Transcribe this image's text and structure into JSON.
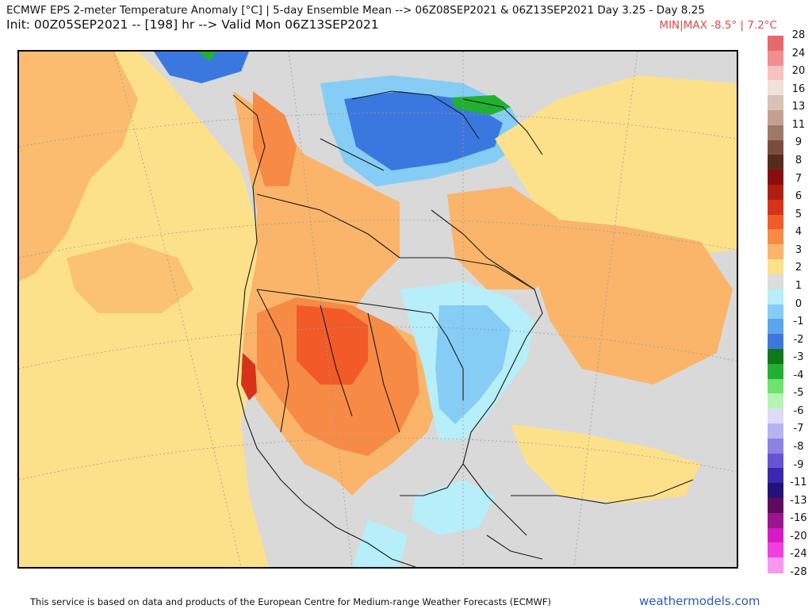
{
  "header": {
    "title_line1": "ECMWF EPS 2-meter Temperature Anomaly [°C] | 5-day Ensemble Mean --> 06Z08SEP2021 & 06Z13SEP2021   Day 3.25 - Day 8.25",
    "title_line2": "Init: 00Z05SEP2021 -- [198] hr --> Valid Mon 06Z13SEP2021",
    "minmax": "MIN|MAX -8.5° | 7.2°C"
  },
  "legend": {
    "labels": [
      "28",
      "24",
      "20",
      "16",
      "13",
      "11",
      "9",
      "8",
      "7",
      "6",
      "5",
      "4",
      "3",
      "2",
      "1",
      "0",
      "-1",
      "-2",
      "-3",
      "-4",
      "-5",
      "-6",
      "-7",
      "-8",
      "-9",
      "-11",
      "-13",
      "-16",
      "-20",
      "-24",
      "-28"
    ],
    "colors": [
      "#e8686c",
      "#f08e90",
      "#f7c2c0",
      "#f2e0da",
      "#d9c2b8",
      "#c4a090",
      "#a07866",
      "#7a4e3c",
      "#5a2a1c",
      "#8a0d0d",
      "#b01e12",
      "#d6331a",
      "#f25a28",
      "#f78a45",
      "#fab56a",
      "#fde18a",
      "#fcf6b8",
      "#dcdcdc",
      "#b6eefa",
      "#86cdf5",
      "#5aa6ee",
      "#3a78e0",
      "#1a4cc8",
      "#0c7a18",
      "#22b032",
      "#6ee36e",
      "#b4f5b4",
      "#dedaf8",
      "#b8b2f0",
      "#8c82e6",
      "#6654d6",
      "#3a28b0",
      "#24127a",
      "#5e0a5e",
      "#9c1490",
      "#d81ac4",
      "#f240e0",
      "#f896f0"
    ],
    "swatch_colors_used": [
      "#e8686c",
      "#f08e90",
      "#f7c2c0",
      "#f2e0da",
      "#d9c2b8",
      "#c4a090",
      "#a07866",
      "#7a4e3c",
      "#5a2a1c",
      "#8a0d0d",
      "#b01e12",
      "#d6331a",
      "#f25a28",
      "#f78a45",
      "#fab56a",
      "#fde18a",
      "#dcdcdc",
      "#b6eefa",
      "#86cdf5",
      "#5aa6ee",
      "#3a78e0",
      "#0c7a18",
      "#22b032",
      "#6ee36e",
      "#b4f5b4",
      "#dedaf8",
      "#b8b2f0",
      "#8c82e6",
      "#6654d6",
      "#3a28b0",
      "#24127a",
      "#5e0a5e",
      "#9c1490",
      "#d81ac4",
      "#f240e0",
      "#f896f0"
    ]
  },
  "map": {
    "region": "North America",
    "variable": "2-meter temperature anomaly",
    "colors": {
      "ocean_neutral": "#d9d9d9",
      "anom_plus1": "#fde18a",
      "anom_plus2": "#fab56a",
      "anom_plus3": "#f78a45",
      "anom_plus4": "#f25a28",
      "anom_plus5": "#d6331a",
      "anom_minus1": "#b6eefa",
      "anom_minus2": "#86cdf5",
      "anom_minus3": "#5aa6ee",
      "anom_minus4": "#3a78e0",
      "anom_minus5": "#0c7a18",
      "anom_minus6": "#22b032",
      "coastline": "#1a1a1a",
      "graticule": "#9a9a9a"
    }
  },
  "footer": {
    "attribution": "This service is based on data and products of the European Centre for Medium-range Weather Forecasts (ECMWF)",
    "brand": "weathermodels.com"
  }
}
